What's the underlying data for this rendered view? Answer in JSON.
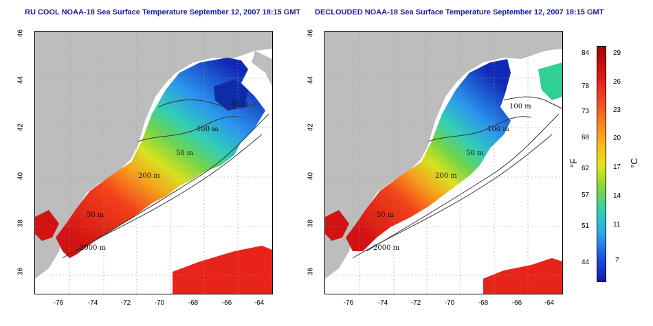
{
  "titles": {
    "left": "RU COOL NOAA-18 Sea Surface Temperature September 12, 2007 18:15 GMT",
    "right": "DECLOUDED NOAA-18 Sea Surface Temperature September 12, 2007 18:15 GMT"
  },
  "axes": {
    "lat_ticks": [
      "46",
      "44",
      "42",
      "40",
      "38",
      "36"
    ],
    "lon_ticks": [
      "-76",
      "-74",
      "-72",
      "-70",
      "-68",
      "-66",
      "-64"
    ]
  },
  "contour_labels": {
    "left": [
      "50 m",
      "100 m",
      "50 m",
      "200 m",
      "50 m",
      "2000 m"
    ],
    "right": [
      "100 m",
      "100 m",
      "50 m",
      "200 m",
      "50 m",
      "2000 m"
    ]
  },
  "colorbar": {
    "fahrenheit_ticks": [
      "84",
      "78",
      "73",
      "68",
      "62",
      "57",
      "51",
      "44"
    ],
    "celsius_ticks": [
      "29",
      "26",
      "23",
      "20",
      "17",
      "14",
      "11",
      "7"
    ],
    "fahrenheit_unit": "°F",
    "celsius_unit": "°C"
  },
  "colors": {
    "land": "#bdbdbd",
    "title": "#1a1aa6",
    "cold": "#101bb0",
    "warm": "#a50000"
  }
}
